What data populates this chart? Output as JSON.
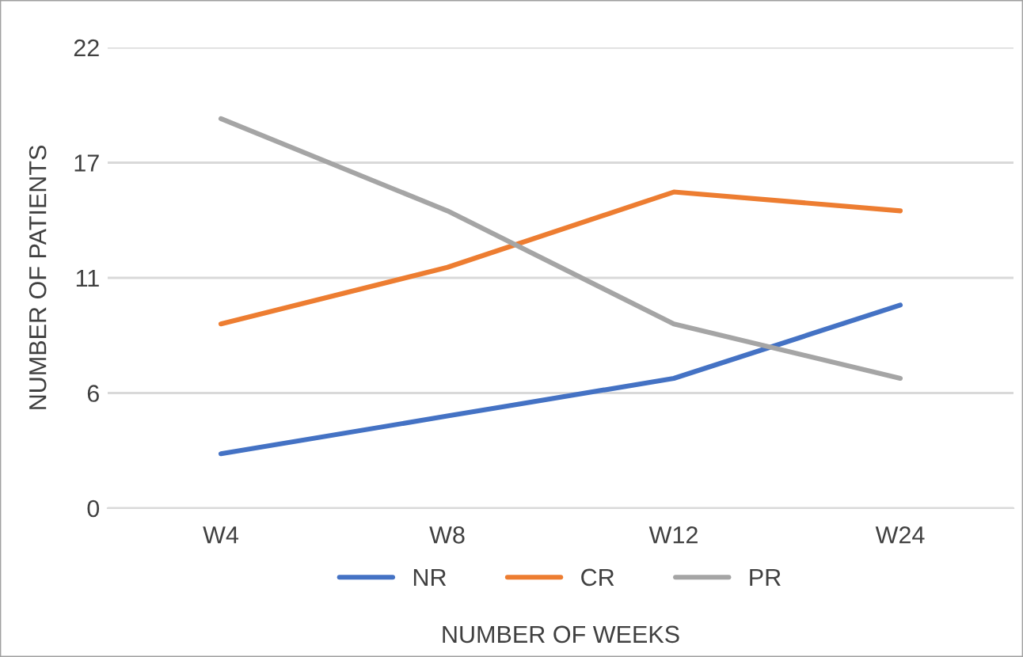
{
  "chart_data": {
    "type": "line",
    "xlabel": "NUMBER OF WEEKS",
    "ylabel": "NUMBER OF PATIENTS",
    "categories": [
      "W4",
      "W8",
      "W12",
      "W24"
    ],
    "series": [
      {
        "name": "NR",
        "color": "#4472c4",
        "values": [
          2.6,
          4.4,
          6.2,
          9.7
        ]
      },
      {
        "name": "CR",
        "color": "#ed7d31",
        "values": [
          8.8,
          11.5,
          15.1,
          14.2
        ]
      },
      {
        "name": "PR",
        "color": "#a5a5a5",
        "values": [
          18.6,
          14.2,
          8.8,
          6.2
        ]
      }
    ],
    "ylim": [
      0,
      22
    ],
    "yticks": [
      0,
      {
        "value": 5.5,
        "label": "6"
      },
      11,
      {
        "value": 16.5,
        "label": "17"
      },
      22
    ],
    "grid": "y",
    "legend": "bottom",
    "marker": "none",
    "line_style": "solid"
  }
}
